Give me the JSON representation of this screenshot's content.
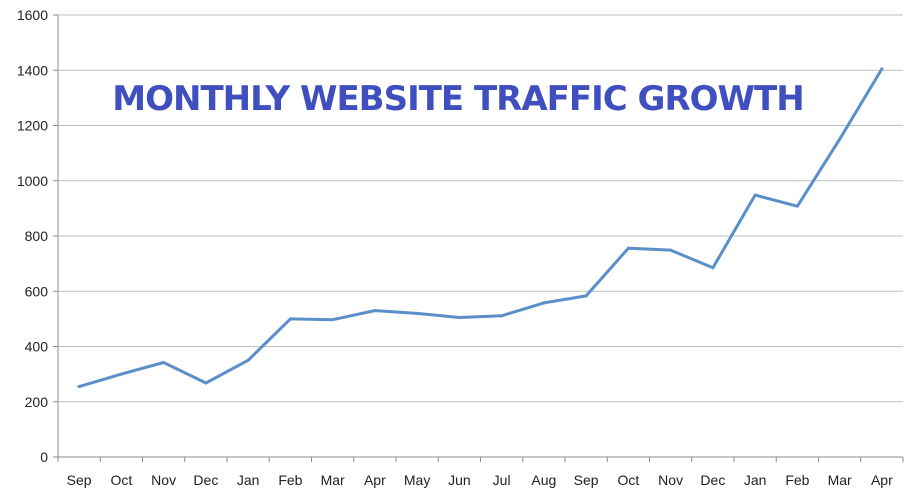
{
  "chart_data": {
    "type": "line",
    "title": "MONTHLY WEBSITE TRAFFIC GROWTH",
    "xlabel": "",
    "ylabel": "",
    "categories": [
      "Sep",
      "Oct",
      "Nov",
      "Dec",
      "Jan",
      "Feb",
      "Mar",
      "Apr",
      "May",
      "Jun",
      "Jul",
      "Aug",
      "Sep",
      "Oct",
      "Nov",
      "Dec",
      "Jan",
      "Feb",
      "Mar",
      "Apr"
    ],
    "series": [
      {
        "values": [
          255,
          300,
          342,
          268,
          350,
          500,
          497,
          530,
          520,
          505,
          511,
          558,
          583,
          756,
          749,
          685,
          948,
          908,
          1150,
          1405
        ]
      }
    ],
    "ylim": [
      0,
      1600
    ],
    "yticks": [
      0,
      200,
      400,
      600,
      800,
      1000,
      1200,
      1400,
      1600
    ],
    "grid": true,
    "legend": "none",
    "colors": {
      "line": "#5b8fc9",
      "grid": "#bfbfbf",
      "axis": "#8c8c8c",
      "title": "#3f4fbf"
    }
  }
}
